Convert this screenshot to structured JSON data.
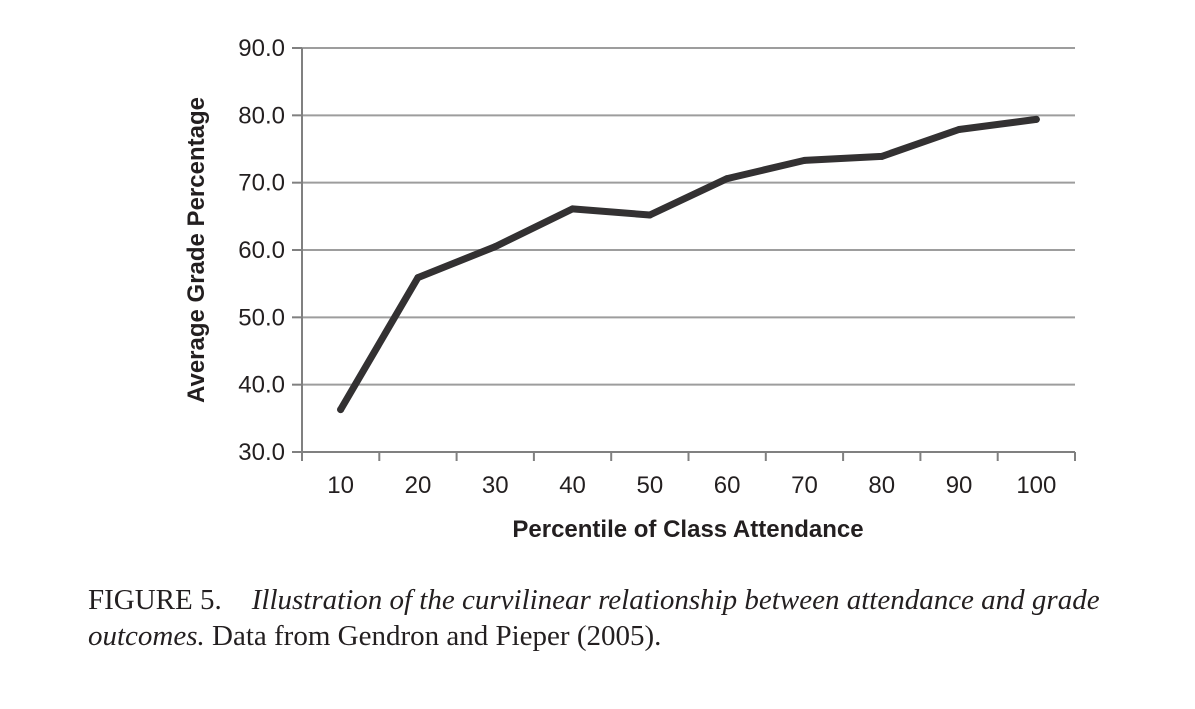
{
  "chart_data": {
    "type": "line",
    "title": "",
    "xlabel": "Percentile of Class Attendance",
    "ylabel": "Average Grade Percentage",
    "categories": [
      "10",
      "20",
      "30",
      "40",
      "50",
      "60",
      "70",
      "80",
      "90",
      "100"
    ],
    "series": [
      {
        "name": "Average grade",
        "values": [
          36.3,
          55.9,
          60.5,
          66.1,
          65.2,
          70.6,
          73.3,
          73.9,
          77.9,
          79.4
        ]
      }
    ],
    "ylim": [
      30,
      90
    ],
    "yticks": [
      "30.0",
      "40.0",
      "50.0",
      "60.0",
      "70.0",
      "80.0",
      "90.0"
    ],
    "grid": true,
    "legend": "none",
    "colors": {
      "line": "#333132",
      "grid": "#9d9d9d",
      "axis": "#808080",
      "text": "#231f20"
    }
  },
  "caption": {
    "label": "FIGURE 5.",
    "title_italic": "Illustration of the curvilinear relationship between attendance and grade outcomes.",
    "source": "Data from Gendron and Pieper (2005)."
  }
}
